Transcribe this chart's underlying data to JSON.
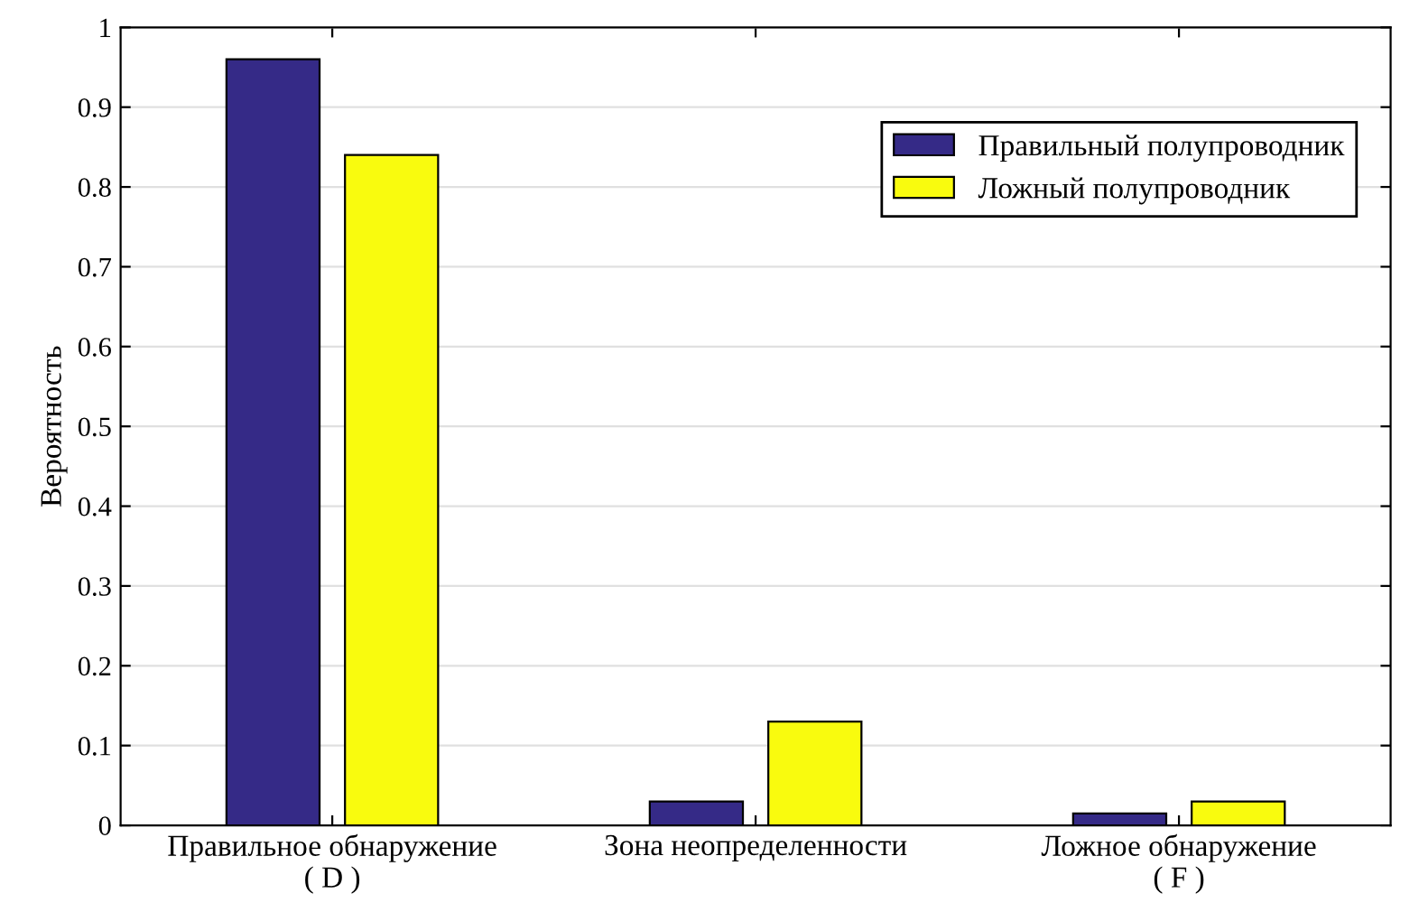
{
  "chart_data": {
    "type": "bar",
    "ylabel": "Вероятность",
    "categories": [
      "Правильное обнаружение\n( D )",
      "Зона неопределенности",
      "Ложное обнаружение\n( F )"
    ],
    "series": [
      {
        "name": "Правильный полупроводник",
        "color": "#352a87",
        "values": [
          0.96,
          0.03,
          0.015
        ]
      },
      {
        "name": "Ложный полупроводник",
        "color": "#f9fb0e",
        "values": [
          0.84,
          0.13,
          0.03
        ]
      }
    ],
    "ylim": [
      0,
      1
    ],
    "yticks": [
      0,
      0.1,
      0.2,
      0.3,
      0.4,
      0.5,
      0.6,
      0.7,
      0.8,
      0.9,
      1
    ],
    "grid": "y",
    "legend": "top right"
  }
}
